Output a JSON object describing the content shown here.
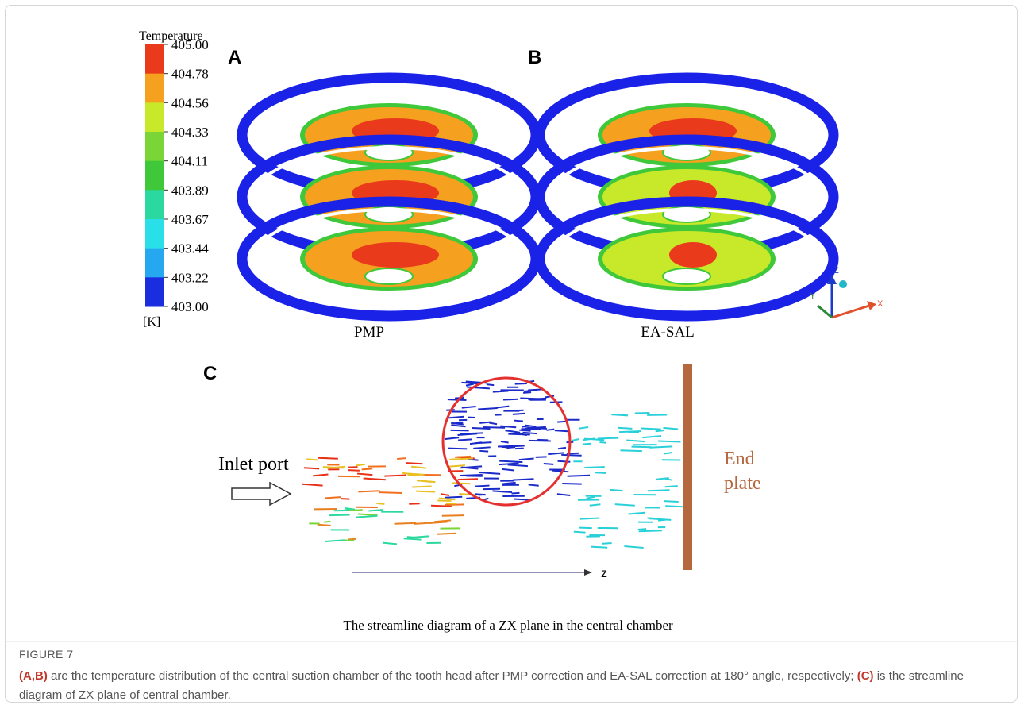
{
  "colorbar": {
    "title": "Temperature",
    "unit": "[K]",
    "labels": [
      "405.00",
      "404.78",
      "404.56",
      "404.33",
      "404.11",
      "403.89",
      "403.67",
      "403.44",
      "403.22",
      "403.00"
    ]
  },
  "panels": [
    {
      "label": "A",
      "caption": "PMP"
    },
    {
      "label": "B",
      "caption": "EA-SAL"
    },
    {
      "label": "C"
    }
  ],
  "axes": {
    "x": "X",
    "y": "Y",
    "z": "Z"
  },
  "streamline": {
    "inlet": "Inlet port",
    "end_plate": [
      "End",
      "plate"
    ],
    "axis": "z",
    "title": "The streamline diagram of a ZX plane in the central chamber"
  },
  "figure": {
    "label": "FIGURE 7",
    "caption": [
      {
        "text": "(A,B)",
        "bold": true
      },
      {
        "text": " are the temperature distribution of the central suction chamber of the tooth head after PMP correction and EA-SAL correction at 180° angle, respectively; ",
        "bold": false
      },
      {
        "text": "(C)",
        "bold": true
      },
      {
        "text": " is the streamline diagram of ZX plane of central chamber.",
        "bold": false
      }
    ]
  }
}
